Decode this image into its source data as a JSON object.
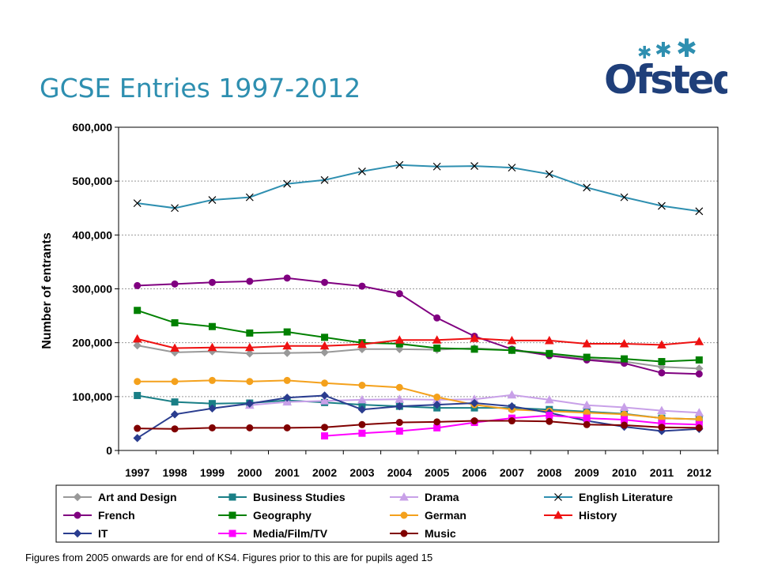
{
  "title": "GCSE Entries 1997-2012",
  "logo_text": "Ofsted",
  "footnote": "Figures from 2005 onwards are for end of KS4.  Figures prior to this are for pupils aged 15",
  "chart_data": {
    "type": "line",
    "title": "",
    "xlabel": "",
    "ylabel": "Number of entrants",
    "ylim": [
      0,
      600000
    ],
    "y_ticks": [
      0,
      100000,
      200000,
      300000,
      400000,
      500000,
      600000
    ],
    "y_tick_labels": [
      "0",
      "100,000",
      "200,000",
      "300,000",
      "400,000",
      "500,000",
      "600,000"
    ],
    "grid": "horizontal dotted",
    "legend": "bottom",
    "x": [
      "1997",
      "1998",
      "1999",
      "2000",
      "2001",
      "2002",
      "2003",
      "2004",
      "2005",
      "2006",
      "2007",
      "2008",
      "2009",
      "2010",
      "2011",
      "2012"
    ],
    "series": [
      {
        "name": "Art and Design",
        "color": "#999999",
        "marker": "diamond",
        "values": [
          195000,
          182000,
          184000,
          180000,
          181000,
          182000,
          188000,
          188000,
          187000,
          190000,
          186000,
          177000,
          170000,
          165000,
          155000,
          152000
        ]
      },
      {
        "name": "Business Studies",
        "color": "#1a7f86",
        "marker": "square",
        "values": [
          102000,
          90000,
          87000,
          88000,
          93000,
          89000,
          85000,
          82000,
          79000,
          79000,
          79000,
          76000,
          72000,
          68000,
          60000,
          58000
        ]
      },
      {
        "name": "Drama",
        "color": "#c8a0e8",
        "marker": "triangle",
        "values": [
          null,
          null,
          null,
          84000,
          90000,
          92000,
          94000,
          95000,
          94000,
          95000,
          103000,
          94000,
          84000,
          80000,
          74000,
          70000
        ]
      },
      {
        "name": "English Literature",
        "color": "#2e8fb0",
        "marker": "x",
        "values": [
          459000,
          450000,
          465000,
          470000,
          495000,
          502000,
          518000,
          530000,
          527000,
          528000,
          525000,
          513000,
          488000,
          470000,
          454000,
          444000
        ]
      },
      {
        "name": "French",
        "color": "#800080",
        "marker": "circle",
        "values": [
          306000,
          309000,
          312000,
          314000,
          320000,
          312000,
          305000,
          291000,
          246000,
          212000,
          188000,
          176000,
          168000,
          162000,
          144000,
          142000
        ]
      },
      {
        "name": "Geography",
        "color": "#008000",
        "marker": "square",
        "values": [
          260000,
          237000,
          230000,
          218000,
          220000,
          210000,
          200000,
          198000,
          190000,
          188000,
          186000,
          180000,
          173000,
          170000,
          165000,
          168000
        ]
      },
      {
        "name": "German",
        "color": "#f4a11c",
        "marker": "circle",
        "values": [
          128000,
          128000,
          130000,
          128000,
          130000,
          125000,
          121000,
          117000,
          99000,
          85000,
          76000,
          73000,
          70000,
          67000,
          60000,
          58000
        ]
      },
      {
        "name": "History",
        "color": "#ee1111",
        "marker": "triangle",
        "values": [
          207000,
          190000,
          191000,
          191000,
          194000,
          194000,
          197000,
          205000,
          205000,
          208000,
          204000,
          204000,
          198000,
          198000,
          196000,
          202000
        ]
      },
      {
        "name": "IT",
        "color": "#2a3d8f",
        "marker": "diamond",
        "values": [
          23000,
          67000,
          78000,
          87000,
          98000,
          102000,
          76000,
          82000,
          85000,
          88000,
          82000,
          70000,
          55000,
          44000,
          36000,
          40000
        ]
      },
      {
        "name": "Media/Film/TV",
        "color": "#ff00ff",
        "marker": "square",
        "values": [
          null,
          null,
          null,
          null,
          null,
          27000,
          32000,
          36000,
          42000,
          52000,
          60000,
          65000,
          60000,
          57000,
          50000,
          48000
        ]
      },
      {
        "name": "Music",
        "color": "#800000",
        "marker": "circle",
        "values": [
          41000,
          40000,
          42000,
          42000,
          42000,
          43000,
          48000,
          52000,
          53000,
          55000,
          55000,
          54000,
          48000,
          47000,
          43000,
          42000
        ]
      }
    ]
  }
}
